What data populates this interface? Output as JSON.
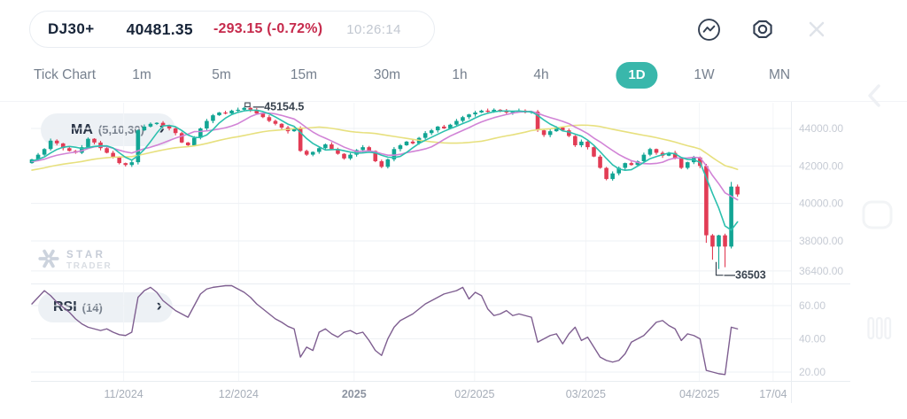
{
  "header": {
    "symbol": "DJ30+",
    "price": "40481.35",
    "change": "-293.15 (-0.72%)",
    "time": "10:26:14",
    "icons": {
      "indicator": "pulse-line-in-circle",
      "settings": "hexagon-gear",
      "close": "x-cross"
    }
  },
  "timeframes": {
    "items": [
      {
        "label": "Tick Chart"
      },
      {
        "label": "1m"
      },
      {
        "label": "5m"
      },
      {
        "label": "15m"
      },
      {
        "label": "30m"
      },
      {
        "label": "1h"
      },
      {
        "label": "4h"
      },
      {
        "label": "1D"
      },
      {
        "label": "1W"
      },
      {
        "label": "MN"
      }
    ],
    "active": "1D"
  },
  "indicators": {
    "ma_name": "MA",
    "ma_params": "(5,10,30)",
    "rsi_name": "RSI",
    "rsi_params": "(14)",
    "chevron": "›"
  },
  "watermark": {
    "line1": "STAR",
    "line2": "TRADER"
  },
  "colors": {
    "up": "#12a594",
    "down": "#e23c55",
    "ma5": "#2cc0ae",
    "ma10": "#d183d6",
    "ma30": "#e7e07e",
    "rsi_line": "#7e5e90",
    "accent": "#39b7ab",
    "negative": "#c62a4c",
    "grid": "#eef1f4",
    "vgrid": "#f3f5f8",
    "border": "#e9edf1",
    "axis_text": "#c6cbd4",
    "xaxis_text": "#a7aeb9",
    "xaxis_bold": "#8d94a1",
    "annotation": "#39434f"
  },
  "chart_data": {
    "type": "candlestick",
    "symbol": "DJ30+",
    "timeframe": "1D",
    "legend": [
      "MA (5,10,30)",
      "RSI (14)"
    ],
    "price_axis": {
      "ticks": [
        "44000.00",
        "42000.00",
        "40000.00",
        "38000.00",
        "36400.00"
      ],
      "tick_values": [
        44000,
        42000,
        40000,
        38000,
        36400
      ]
    },
    "rsi_axis": {
      "ticks": [
        "60.00",
        "40.00",
        "20.00"
      ],
      "tick_values": [
        60,
        40,
        20
      ]
    },
    "x_axis": {
      "labels": [
        "11/2024",
        "12/2024",
        "2025",
        "02/2025",
        "03/2025",
        "04/2025",
        "17/04"
      ],
      "positions_idx": [
        14.7,
        33.1,
        51.6,
        70.9,
        88.7,
        106.9,
        118.7
      ],
      "bold_label": "2025"
    },
    "annotations": {
      "high": {
        "label": "—45154.5",
        "value": 45154.5,
        "candle": 34
      },
      "low": {
        "label": "—36503",
        "value": 36503,
        "candle": 110
      }
    },
    "candles": {
      "first_open": 42150,
      "closes": [
        42350,
        42600,
        42900,
        43350,
        43200,
        42950,
        42800,
        42700,
        43000,
        43450,
        43250,
        42950,
        42700,
        42450,
        42150,
        42050,
        42200,
        43900,
        44100,
        44250,
        44300,
        44150,
        44000,
        43750,
        43250,
        43100,
        43500,
        44000,
        44400,
        44700,
        44850,
        44800,
        44950,
        45000,
        45100,
        45000,
        44800,
        44600,
        44400,
        44250,
        44050,
        43850,
        44000,
        42800,
        42600,
        42750,
        42950,
        43150,
        42900,
        42650,
        42400,
        42600,
        42850,
        43000,
        42800,
        42250,
        41950,
        42350,
        42900,
        43100,
        43300,
        43200,
        43500,
        43750,
        43900,
        44100,
        44000,
        44200,
        44400,
        44600,
        44750,
        44850,
        44950,
        44900,
        45000,
        44950,
        44850,
        44900,
        44950,
        44850,
        44900,
        43900,
        43650,
        43850,
        44050,
        43900,
        43600,
        43100,
        43300,
        43000,
        42500,
        41900,
        41300,
        41600,
        41900,
        42150,
        42050,
        42250,
        42600,
        42900,
        42700,
        42550,
        42700,
        42400,
        41900,
        42200,
        42450,
        42000,
        38300,
        37700,
        38300,
        37700,
        40900,
        40481.35
      ],
      "high_overrides": {
        "34": 45154.5,
        "112": 41150
      },
      "low_overrides": {
        "108": 37900,
        "109": 37000,
        "110": 36503,
        "111": 36600
      },
      "ma_prehistory": [
        40800,
        40900,
        41000,
        41100,
        41200,
        41300,
        41350,
        41400,
        41450,
        41500,
        41550,
        41600,
        41650,
        41700,
        41750,
        41800,
        41850,
        41900,
        41950,
        42000,
        42050,
        42100,
        42150,
        42200,
        42250,
        42300,
        42200,
        42250,
        42300,
        42250
      ]
    },
    "ma": {
      "periods": [
        5,
        10,
        30
      ]
    },
    "rsi": {
      "period": 14,
      "values": [
        61,
        65,
        69,
        66,
        62,
        59,
        56,
        52,
        49,
        47,
        46,
        45,
        46,
        44,
        42.5,
        42,
        44,
        65,
        69,
        71,
        68,
        63,
        60,
        57,
        55,
        53,
        60,
        67,
        70,
        71,
        71.5,
        72,
        72,
        70,
        68,
        65,
        61,
        58,
        55,
        52,
        50,
        47.5,
        46,
        29,
        35,
        33,
        44,
        46,
        43,
        41,
        44,
        45,
        43,
        44,
        39,
        33,
        30,
        40,
        47,
        51,
        53,
        55,
        58,
        61,
        63,
        65,
        67,
        68,
        69,
        71,
        64,
        68,
        66,
        58,
        54,
        55,
        57,
        54,
        55,
        54,
        53,
        38,
        40,
        42,
        43,
        37,
        43,
        47,
        39,
        41,
        35,
        29,
        27,
        26,
        27,
        31,
        38,
        40,
        42,
        46,
        50,
        51,
        48,
        46,
        39,
        43,
        42,
        40,
        21,
        20,
        19,
        18.5,
        47,
        46
      ]
    }
  }
}
